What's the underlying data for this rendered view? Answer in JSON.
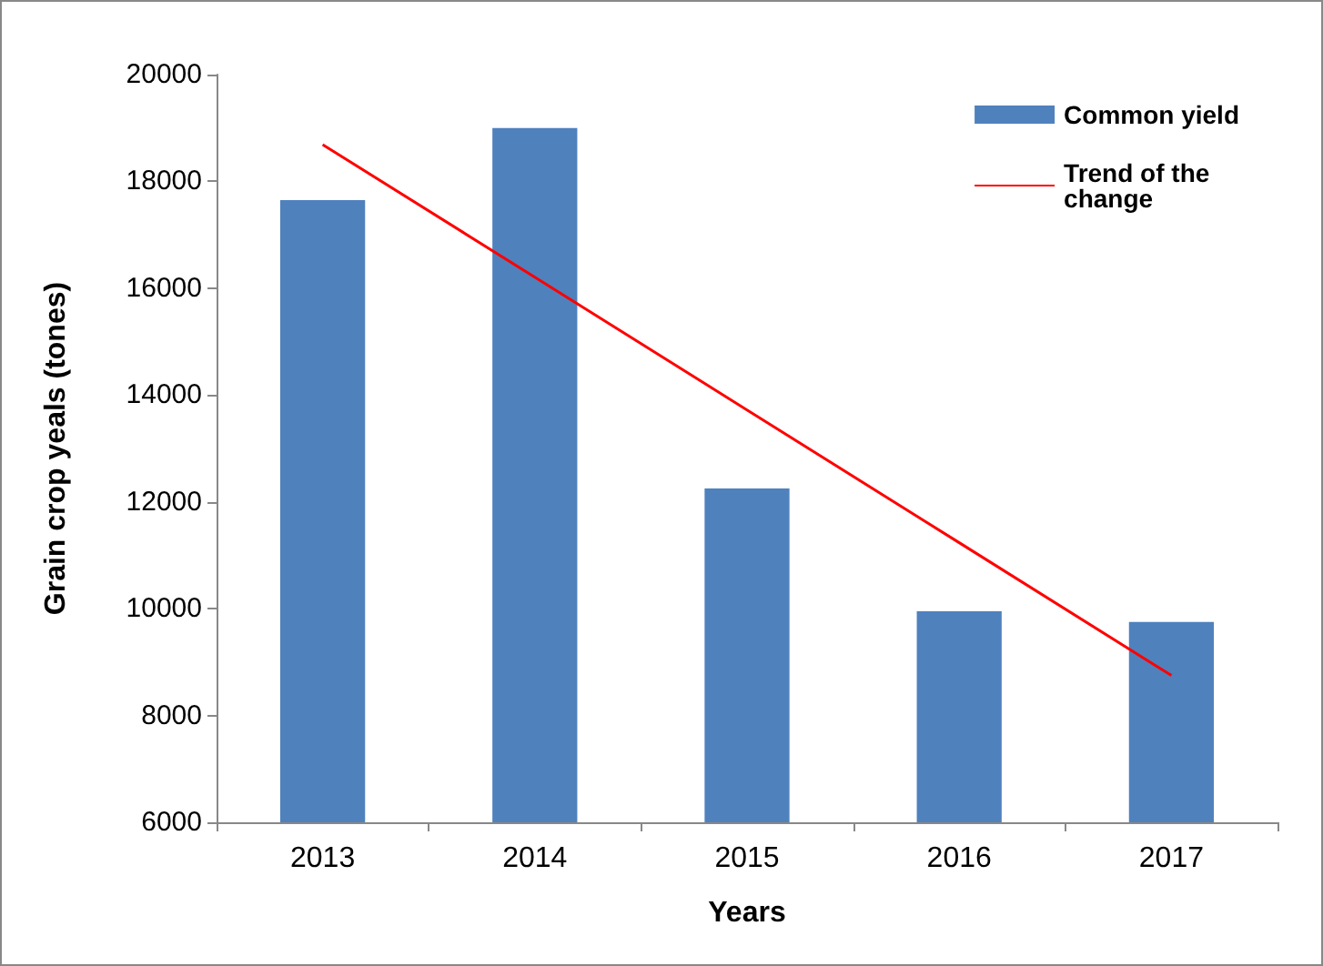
{
  "chart_data": {
    "type": "bar",
    "xlabel": "Years",
    "ylabel": "Grain crop yeals (tones)",
    "categories": [
      "2013",
      "2014",
      "2015",
      "2016",
      "2017"
    ],
    "series": [
      {
        "name": "Common yield",
        "color": "#4f81bd",
        "values": [
          17650,
          19000,
          12250,
          9950,
          9750
        ]
      },
      {
        "name": "Trend of the change",
        "type": "line",
        "color": "#ff0000",
        "values": [
          18690,
          16205,
          13720,
          11235,
          8750
        ]
      }
    ],
    "ylim": [
      6000,
      20000
    ],
    "yticks": [
      6000,
      8000,
      10000,
      12000,
      14000,
      16000,
      18000,
      20000
    ],
    "grid": false,
    "legend": "top right",
    "marker": "none",
    "line_style": "solid"
  }
}
